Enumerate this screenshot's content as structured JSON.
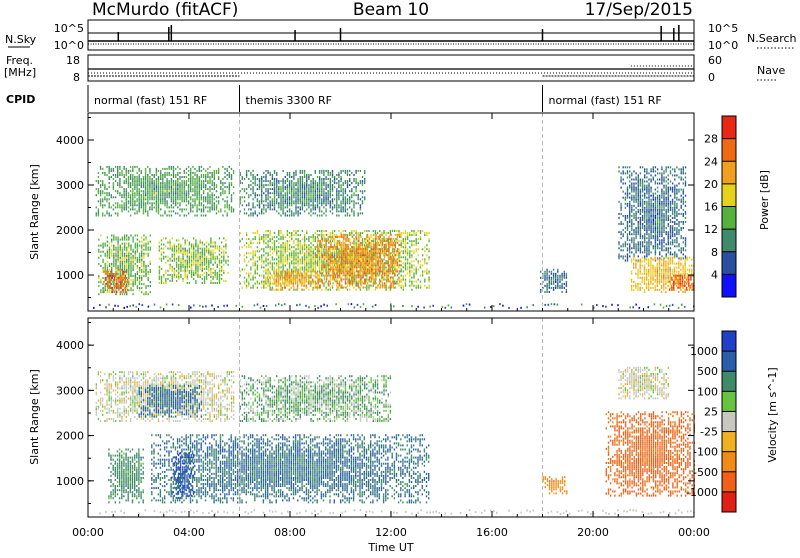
{
  "header": {
    "station": "McMurdo (fitACF)",
    "beam": "Beam 10",
    "date": "17/Sep/2015"
  },
  "strip": {
    "nsky_label": "N.Sky",
    "nsky_ticks": [
      "10^5",
      "10^0"
    ],
    "nsearch_label": "N.Search",
    "nsearch_ticks": [
      "10^5",
      "10^0"
    ],
    "freq_label": "Freq.",
    "freq_unit": "[MHz]",
    "freq_ticks": [
      "18",
      "8"
    ],
    "nave_label": "Nave",
    "nave_ticks": [
      "60",
      "0"
    ],
    "cpid_label": "CPID",
    "cpid_segments": [
      {
        "label": "normal (fast) 151 RF",
        "start_h": 0,
        "end_h": 6
      },
      {
        "label": "themis 3300 RF",
        "start_h": 6,
        "end_h": 18
      },
      {
        "label": "normal (fast) 151 RF",
        "start_h": 18,
        "end_h": 24
      }
    ]
  },
  "x_axis": {
    "label": "Time UT",
    "ticks": [
      "00:00",
      "04:00",
      "08:00",
      "12:00",
      "16:00",
      "20:00",
      "00:00"
    ],
    "range_h": [
      0,
      24
    ]
  },
  "colors": {
    "power_scale": [
      "#1010ff",
      "#2a4fa0",
      "#3e8a6a",
      "#55b23c",
      "#e6d21a",
      "#f0a020",
      "#f06a14",
      "#e82814"
    ],
    "velocity_scale": [
      "#2040c8",
      "#2b5ea8",
      "#3f8a68",
      "#66c440",
      "#c8c8c0",
      "#f0b020",
      "#f08a18",
      "#f06018",
      "#e02014"
    ]
  },
  "chart_data": [
    {
      "type": "heatmap",
      "panel": "power",
      "ylabel": "Slant Range [km]",
      "ylim": [
        200,
        4600
      ],
      "yticks": [
        "1000",
        "2000",
        "3000",
        "4000"
      ],
      "colorbar_label": "Power [dB]",
      "colorbar_ticks": [
        "4",
        "8",
        "12",
        "16",
        "20",
        "24",
        "28"
      ],
      "colorbar_range": [
        0,
        32
      ],
      "regions": [
        {
          "t0": 0.3,
          "t1": 5.8,
          "r0": 2300,
          "r1": 3400,
          "value": 12
        },
        {
          "t0": 0.4,
          "t1": 2.5,
          "r0": 550,
          "r1": 1900,
          "value": 14
        },
        {
          "t0": 0.6,
          "t1": 1.6,
          "r0": 600,
          "r1": 1100,
          "value": 26
        },
        {
          "t0": 2.8,
          "t1": 5.6,
          "r0": 800,
          "r1": 1800,
          "value": 15
        },
        {
          "t0": 6.0,
          "t1": 11.0,
          "r0": 2300,
          "r1": 3300,
          "value": 10
        },
        {
          "t0": 6.0,
          "t1": 13.5,
          "r0": 650,
          "r1": 2000,
          "value": 16
        },
        {
          "t0": 9.0,
          "t1": 12.4,
          "r0": 700,
          "r1": 1900,
          "value": 24
        },
        {
          "t0": 7.0,
          "t1": 9.0,
          "r0": 650,
          "r1": 1100,
          "value": 22
        },
        {
          "t0": 17.9,
          "t1": 19.0,
          "r0": 600,
          "r1": 1100,
          "value": 8
        },
        {
          "t0": 21.0,
          "t1": 23.7,
          "r0": 1300,
          "r1": 3400,
          "value": 8
        },
        {
          "t0": 21.5,
          "t1": 24.0,
          "r0": 600,
          "r1": 1400,
          "value": 20
        },
        {
          "t0": 23.0,
          "t1": 24.0,
          "r0": 650,
          "r1": 1000,
          "value": 28
        }
      ]
    },
    {
      "type": "heatmap",
      "panel": "velocity",
      "ylabel": "Slant Range [km]",
      "ylim": [
        200,
        4600
      ],
      "yticks": [
        "1000",
        "2000",
        "3000",
        "4000"
      ],
      "colorbar_label": "Velocity [m s^-1]",
      "colorbar_ticks": [
        "1000",
        "500",
        "100",
        "25",
        "-25",
        "-100",
        "-500",
        "-1000"
      ],
      "colorbar_range": [
        -1200,
        1200
      ],
      "regions": [
        {
          "t0": 0.3,
          "t1": 5.8,
          "r0": 2300,
          "r1": 3400,
          "value": 0
        },
        {
          "t0": 2.0,
          "t1": 4.5,
          "r0": 2400,
          "r1": 3100,
          "value": 300
        },
        {
          "t0": 0.8,
          "t1": 2.2,
          "r0": 500,
          "r1": 1700,
          "value": 150
        },
        {
          "t0": 3.3,
          "t1": 4.2,
          "r0": 600,
          "r1": 1600,
          "value": 700
        },
        {
          "t0": 2.5,
          "t1": 13.5,
          "r0": 500,
          "r1": 2000,
          "value": 250
        },
        {
          "t0": 6.0,
          "t1": 12.0,
          "r0": 2300,
          "r1": 3300,
          "value": 50
        },
        {
          "t0": 18.0,
          "t1": 19.0,
          "r0": 700,
          "r1": 1100,
          "value": -150
        },
        {
          "t0": 20.5,
          "t1": 24.0,
          "r0": 650,
          "r1": 2500,
          "value": -400
        },
        {
          "t0": 21.0,
          "t1": 23.0,
          "r0": 2800,
          "r1": 3500,
          "value": 0
        }
      ]
    }
  ]
}
